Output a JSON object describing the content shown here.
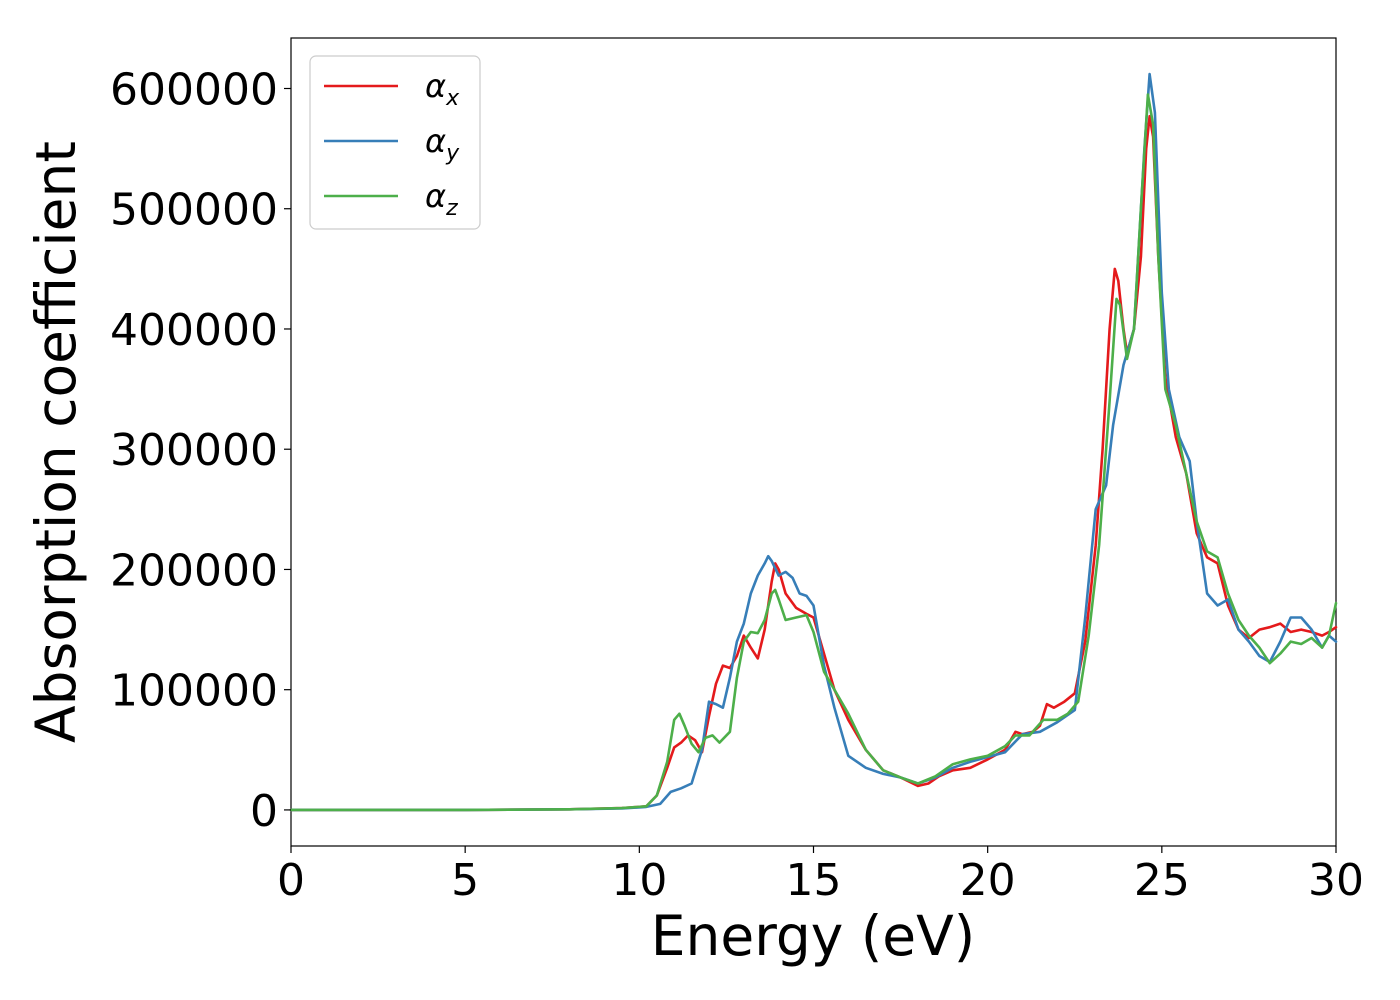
{
  "chart_data": {
    "type": "line",
    "title": "",
    "xlabel": "Energy (eV)",
    "ylabel": "Absorption coefficient",
    "xlim": [
      0,
      30
    ],
    "ylim": [
      -30000,
      642000
    ],
    "xticks": [
      0,
      5,
      10,
      15,
      20,
      25,
      30
    ],
    "yticks": [
      0,
      100000,
      200000,
      300000,
      400000,
      500000,
      600000
    ],
    "grid": false,
    "legend_position": "top-left",
    "series": [
      {
        "name": "αx",
        "label_base": "α",
        "label_sub": "x",
        "color": "#e41a1c",
        "points": [
          [
            0,
            0
          ],
          [
            5,
            0
          ],
          [
            8,
            500
          ],
          [
            9.5,
            1500
          ],
          [
            10.2,
            3000
          ],
          [
            10.5,
            12000
          ],
          [
            10.8,
            35000
          ],
          [
            11,
            52000
          ],
          [
            11.2,
            56000
          ],
          [
            11.4,
            62000
          ],
          [
            11.6,
            58000
          ],
          [
            11.8,
            48000
          ],
          [
            12,
            78000
          ],
          [
            12.2,
            105000
          ],
          [
            12.4,
            120000
          ],
          [
            12.6,
            118000
          ],
          [
            12.8,
            128000
          ],
          [
            13,
            145000
          ],
          [
            13.2,
            135000
          ],
          [
            13.4,
            126000
          ],
          [
            13.6,
            150000
          ],
          [
            13.8,
            190000
          ],
          [
            13.9,
            205000
          ],
          [
            14,
            200000
          ],
          [
            14.2,
            180000
          ],
          [
            14.5,
            168000
          ],
          [
            14.8,
            163000
          ],
          [
            15,
            160000
          ],
          [
            15.3,
            130000
          ],
          [
            15.6,
            100000
          ],
          [
            16,
            75000
          ],
          [
            16.5,
            50000
          ],
          [
            17,
            33000
          ],
          [
            17.5,
            27000
          ],
          [
            18,
            20000
          ],
          [
            18.3,
            22000
          ],
          [
            18.6,
            28000
          ],
          [
            19,
            33000
          ],
          [
            19.5,
            35000
          ],
          [
            20,
            42000
          ],
          [
            20.5,
            50000
          ],
          [
            20.8,
            65000
          ],
          [
            21,
            63000
          ],
          [
            21.3,
            65000
          ],
          [
            21.5,
            70000
          ],
          [
            21.7,
            88000
          ],
          [
            21.9,
            85000
          ],
          [
            22.2,
            90000
          ],
          [
            22.5,
            97000
          ],
          [
            22.8,
            140000
          ],
          [
            23.1,
            220000
          ],
          [
            23.3,
            300000
          ],
          [
            23.5,
            400000
          ],
          [
            23.65,
            450000
          ],
          [
            23.75,
            440000
          ],
          [
            23.9,
            400000
          ],
          [
            24,
            380000
          ],
          [
            24.2,
            400000
          ],
          [
            24.4,
            460000
          ],
          [
            24.55,
            550000
          ],
          [
            24.65,
            577000
          ],
          [
            24.75,
            560000
          ],
          [
            24.9,
            460000
          ],
          [
            25.1,
            360000
          ],
          [
            25.4,
            310000
          ],
          [
            25.7,
            280000
          ],
          [
            26,
            230000
          ],
          [
            26.3,
            210000
          ],
          [
            26.6,
            205000
          ],
          [
            26.9,
            170000
          ],
          [
            27.2,
            150000
          ],
          [
            27.5,
            143000
          ],
          [
            27.8,
            150000
          ],
          [
            28.1,
            152000
          ],
          [
            28.4,
            155000
          ],
          [
            28.7,
            148000
          ],
          [
            29,
            150000
          ],
          [
            29.3,
            148000
          ],
          [
            29.6,
            145000
          ],
          [
            29.8,
            148000
          ],
          [
            30,
            152000
          ]
        ]
      },
      {
        "name": "αy",
        "label_base": "α",
        "label_sub": "y",
        "color": "#377eb8",
        "points": [
          [
            0,
            0
          ],
          [
            5,
            0
          ],
          [
            8,
            500
          ],
          [
            9.5,
            1200
          ],
          [
            10.2,
            2500
          ],
          [
            10.6,
            5000
          ],
          [
            10.9,
            15000
          ],
          [
            11.2,
            18000
          ],
          [
            11.5,
            22000
          ],
          [
            11.8,
            50000
          ],
          [
            12,
            90000
          ],
          [
            12.2,
            88000
          ],
          [
            12.4,
            85000
          ],
          [
            12.6,
            110000
          ],
          [
            12.8,
            140000
          ],
          [
            13,
            155000
          ],
          [
            13.2,
            180000
          ],
          [
            13.4,
            195000
          ],
          [
            13.6,
            205000
          ],
          [
            13.7,
            211000
          ],
          [
            13.8,
            207000
          ],
          [
            14,
            195000
          ],
          [
            14.2,
            198000
          ],
          [
            14.4,
            193000
          ],
          [
            14.6,
            180000
          ],
          [
            14.8,
            178000
          ],
          [
            15,
            170000
          ],
          [
            15.3,
            120000
          ],
          [
            15.6,
            85000
          ],
          [
            16,
            45000
          ],
          [
            16.5,
            35000
          ],
          [
            17,
            30000
          ],
          [
            17.5,
            27000
          ],
          [
            18,
            22000
          ],
          [
            18.5,
            27000
          ],
          [
            19,
            35000
          ],
          [
            19.5,
            40000
          ],
          [
            20,
            44000
          ],
          [
            20.5,
            48000
          ],
          [
            21,
            63000
          ],
          [
            21.5,
            65000
          ],
          [
            22,
            73000
          ],
          [
            22.5,
            83000
          ],
          [
            22.8,
            160000
          ],
          [
            23.1,
            250000
          ],
          [
            23.4,
            270000
          ],
          [
            23.6,
            320000
          ],
          [
            23.9,
            370000
          ],
          [
            24.2,
            400000
          ],
          [
            24.5,
            550000
          ],
          [
            24.65,
            612000
          ],
          [
            24.8,
            580000
          ],
          [
            25,
            430000
          ],
          [
            25.2,
            350000
          ],
          [
            25.5,
            310000
          ],
          [
            25.8,
            290000
          ],
          [
            26,
            240000
          ],
          [
            26.3,
            180000
          ],
          [
            26.6,
            170000
          ],
          [
            26.9,
            175000
          ],
          [
            27.2,
            150000
          ],
          [
            27.5,
            140000
          ],
          [
            27.8,
            128000
          ],
          [
            28.1,
            123000
          ],
          [
            28.4,
            140000
          ],
          [
            28.7,
            160000
          ],
          [
            29,
            160000
          ],
          [
            29.3,
            150000
          ],
          [
            29.6,
            135000
          ],
          [
            29.8,
            145000
          ],
          [
            30,
            140000
          ]
        ]
      },
      {
        "name": "αz",
        "label_base": "α",
        "label_sub": "z",
        "color": "#4daf4a",
        "points": [
          [
            0,
            0
          ],
          [
            5,
            0
          ],
          [
            8,
            500
          ],
          [
            9.5,
            1500
          ],
          [
            10.2,
            3000
          ],
          [
            10.5,
            12000
          ],
          [
            10.8,
            40000
          ],
          [
            11,
            75000
          ],
          [
            11.15,
            80000
          ],
          [
            11.3,
            70000
          ],
          [
            11.5,
            55000
          ],
          [
            11.7,
            48000
          ],
          [
            11.9,
            60000
          ],
          [
            12.1,
            62000
          ],
          [
            12.3,
            56000
          ],
          [
            12.6,
            65000
          ],
          [
            12.8,
            110000
          ],
          [
            13,
            140000
          ],
          [
            13.2,
            148000
          ],
          [
            13.4,
            147000
          ],
          [
            13.6,
            158000
          ],
          [
            13.8,
            180000
          ],
          [
            13.9,
            183000
          ],
          [
            14,
            175000
          ],
          [
            14.2,
            158000
          ],
          [
            14.5,
            160000
          ],
          [
            14.8,
            162000
          ],
          [
            15,
            148000
          ],
          [
            15.3,
            115000
          ],
          [
            15.6,
            100000
          ],
          [
            16,
            80000
          ],
          [
            16.5,
            50000
          ],
          [
            17,
            33000
          ],
          [
            17.5,
            27000
          ],
          [
            18,
            22000
          ],
          [
            18.5,
            28000
          ],
          [
            19,
            38000
          ],
          [
            19.5,
            42000
          ],
          [
            20,
            45000
          ],
          [
            20.5,
            53000
          ],
          [
            20.8,
            62000
          ],
          [
            21.2,
            62000
          ],
          [
            21.6,
            75000
          ],
          [
            22,
            75000
          ],
          [
            22.3,
            80000
          ],
          [
            22.6,
            90000
          ],
          [
            22.9,
            145000
          ],
          [
            23.2,
            220000
          ],
          [
            23.5,
            340000
          ],
          [
            23.7,
            425000
          ],
          [
            23.8,
            420000
          ],
          [
            24,
            375000
          ],
          [
            24.2,
            400000
          ],
          [
            24.4,
            500000
          ],
          [
            24.6,
            595000
          ],
          [
            24.75,
            570000
          ],
          [
            24.9,
            460000
          ],
          [
            25.1,
            350000
          ],
          [
            25.4,
            320000
          ],
          [
            25.7,
            280000
          ],
          [
            26,
            240000
          ],
          [
            26.3,
            215000
          ],
          [
            26.6,
            210000
          ],
          [
            26.9,
            180000
          ],
          [
            27.2,
            158000
          ],
          [
            27.5,
            145000
          ],
          [
            27.8,
            135000
          ],
          [
            28.1,
            122000
          ],
          [
            28.4,
            130000
          ],
          [
            28.7,
            140000
          ],
          [
            29,
            138000
          ],
          [
            29.3,
            143000
          ],
          [
            29.6,
            135000
          ],
          [
            29.8,
            145000
          ],
          [
            30,
            172000
          ]
        ]
      }
    ]
  }
}
